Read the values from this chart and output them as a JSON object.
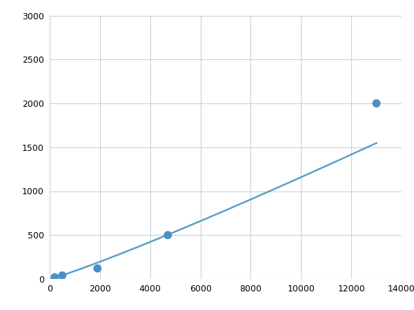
{
  "x": [
    200,
    500,
    1900,
    4700,
    13000
  ],
  "y": [
    20,
    40,
    120,
    500,
    2000
  ],
  "line_color": "#5b9dc9",
  "marker_color": "#4a90c4",
  "marker_size": 7,
  "line_width": 1.8,
  "xlim": [
    0,
    14000
  ],
  "ylim": [
    0,
    3000
  ],
  "xticks": [
    0,
    2000,
    4000,
    6000,
    8000,
    10000,
    12000,
    14000
  ],
  "yticks": [
    0,
    500,
    1000,
    1500,
    2000,
    2500,
    3000
  ],
  "grid_color": "#c8d0d8",
  "background_color": "#ffffff",
  "figure_background": "#ffffff"
}
